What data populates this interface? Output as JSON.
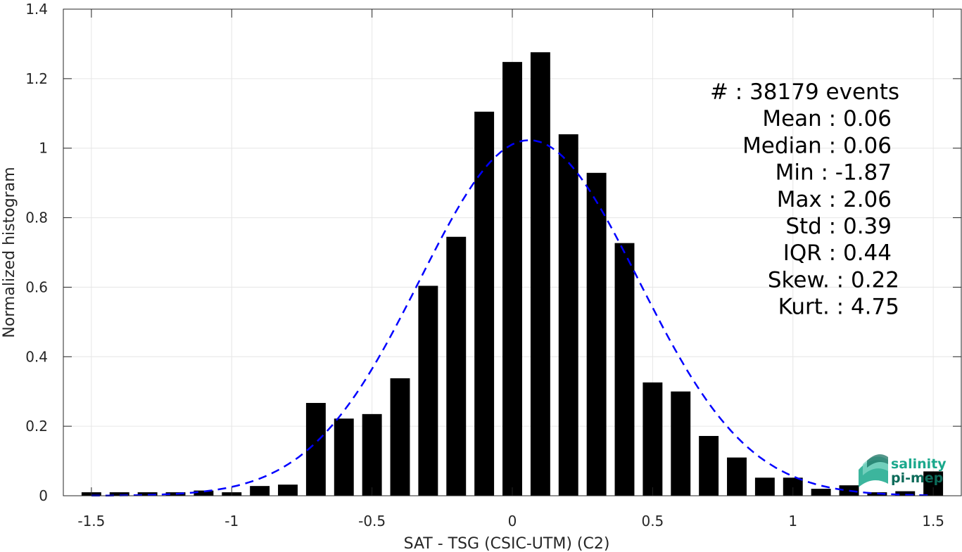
{
  "chart_data": {
    "type": "bar",
    "xlabel": "SAT - TSG (CSIC-UTM) (C2)",
    "ylabel": "Normalized histogram",
    "xlim": [
      -1.6,
      1.6
    ],
    "ylim": [
      0,
      1.4
    ],
    "grid": true,
    "x_ticks": [
      -1.5,
      -1,
      -0.5,
      0,
      0.5,
      1,
      1.5
    ],
    "x_tick_labels": [
      "-1.5",
      "-1",
      "-0.5",
      "0",
      "0.5",
      "1",
      "1.5"
    ],
    "y_ticks": [
      0,
      0.2,
      0.4,
      0.6,
      0.8,
      1,
      1.2,
      1.4
    ],
    "y_tick_labels": [
      "0",
      "0.2",
      "0.4",
      "0.6",
      "0.8",
      "1",
      "1.2",
      "1.4"
    ],
    "bin_width": 0.1,
    "bar_color": "#000000",
    "x": [
      -1.5,
      -1.4,
      -1.3,
      -1.2,
      -1.1,
      -1.0,
      -0.9,
      -0.8,
      -0.7,
      -0.6,
      -0.5,
      -0.4,
      -0.3,
      -0.2,
      -0.1,
      0.0,
      0.1,
      0.2,
      0.3,
      0.4,
      0.5,
      0.6,
      0.7,
      0.8,
      0.9,
      1.0,
      1.1,
      1.2,
      1.3,
      1.4,
      1.5
    ],
    "values": [
      0.01,
      0.01,
      0.01,
      0.01,
      0.015,
      0.01,
      0.028,
      0.032,
      0.267,
      0.222,
      0.235,
      0.338,
      0.604,
      0.745,
      1.105,
      1.248,
      1.276,
      1.04,
      0.929,
      0.727,
      0.326,
      0.3,
      0.172,
      0.11,
      0.052,
      0.052,
      0.02,
      0.03,
      0.01,
      0.013,
      0.07
    ],
    "fit": {
      "type": "gaussian",
      "mean": 0.06,
      "std": 0.39,
      "color": "#0000ff",
      "dash": "dashed"
    },
    "stats": [
      {
        "label": "#  : 38179 events"
      },
      {
        "label": "Mean : 0.06"
      },
      {
        "label": "Median : 0.06"
      },
      {
        "label": "Min : -1.87"
      },
      {
        "label": "Max : 2.06"
      },
      {
        "label": "Std : 0.39"
      },
      {
        "label": "IQR : 0.44"
      },
      {
        "label": "Skew. : 0.22"
      },
      {
        "label": "Kurt. : 4.75"
      }
    ]
  },
  "logo": {
    "line1": "salinity",
    "line2": "pi-mep",
    "color1": "#1aa88c",
    "color2": "#0d6b5a"
  }
}
